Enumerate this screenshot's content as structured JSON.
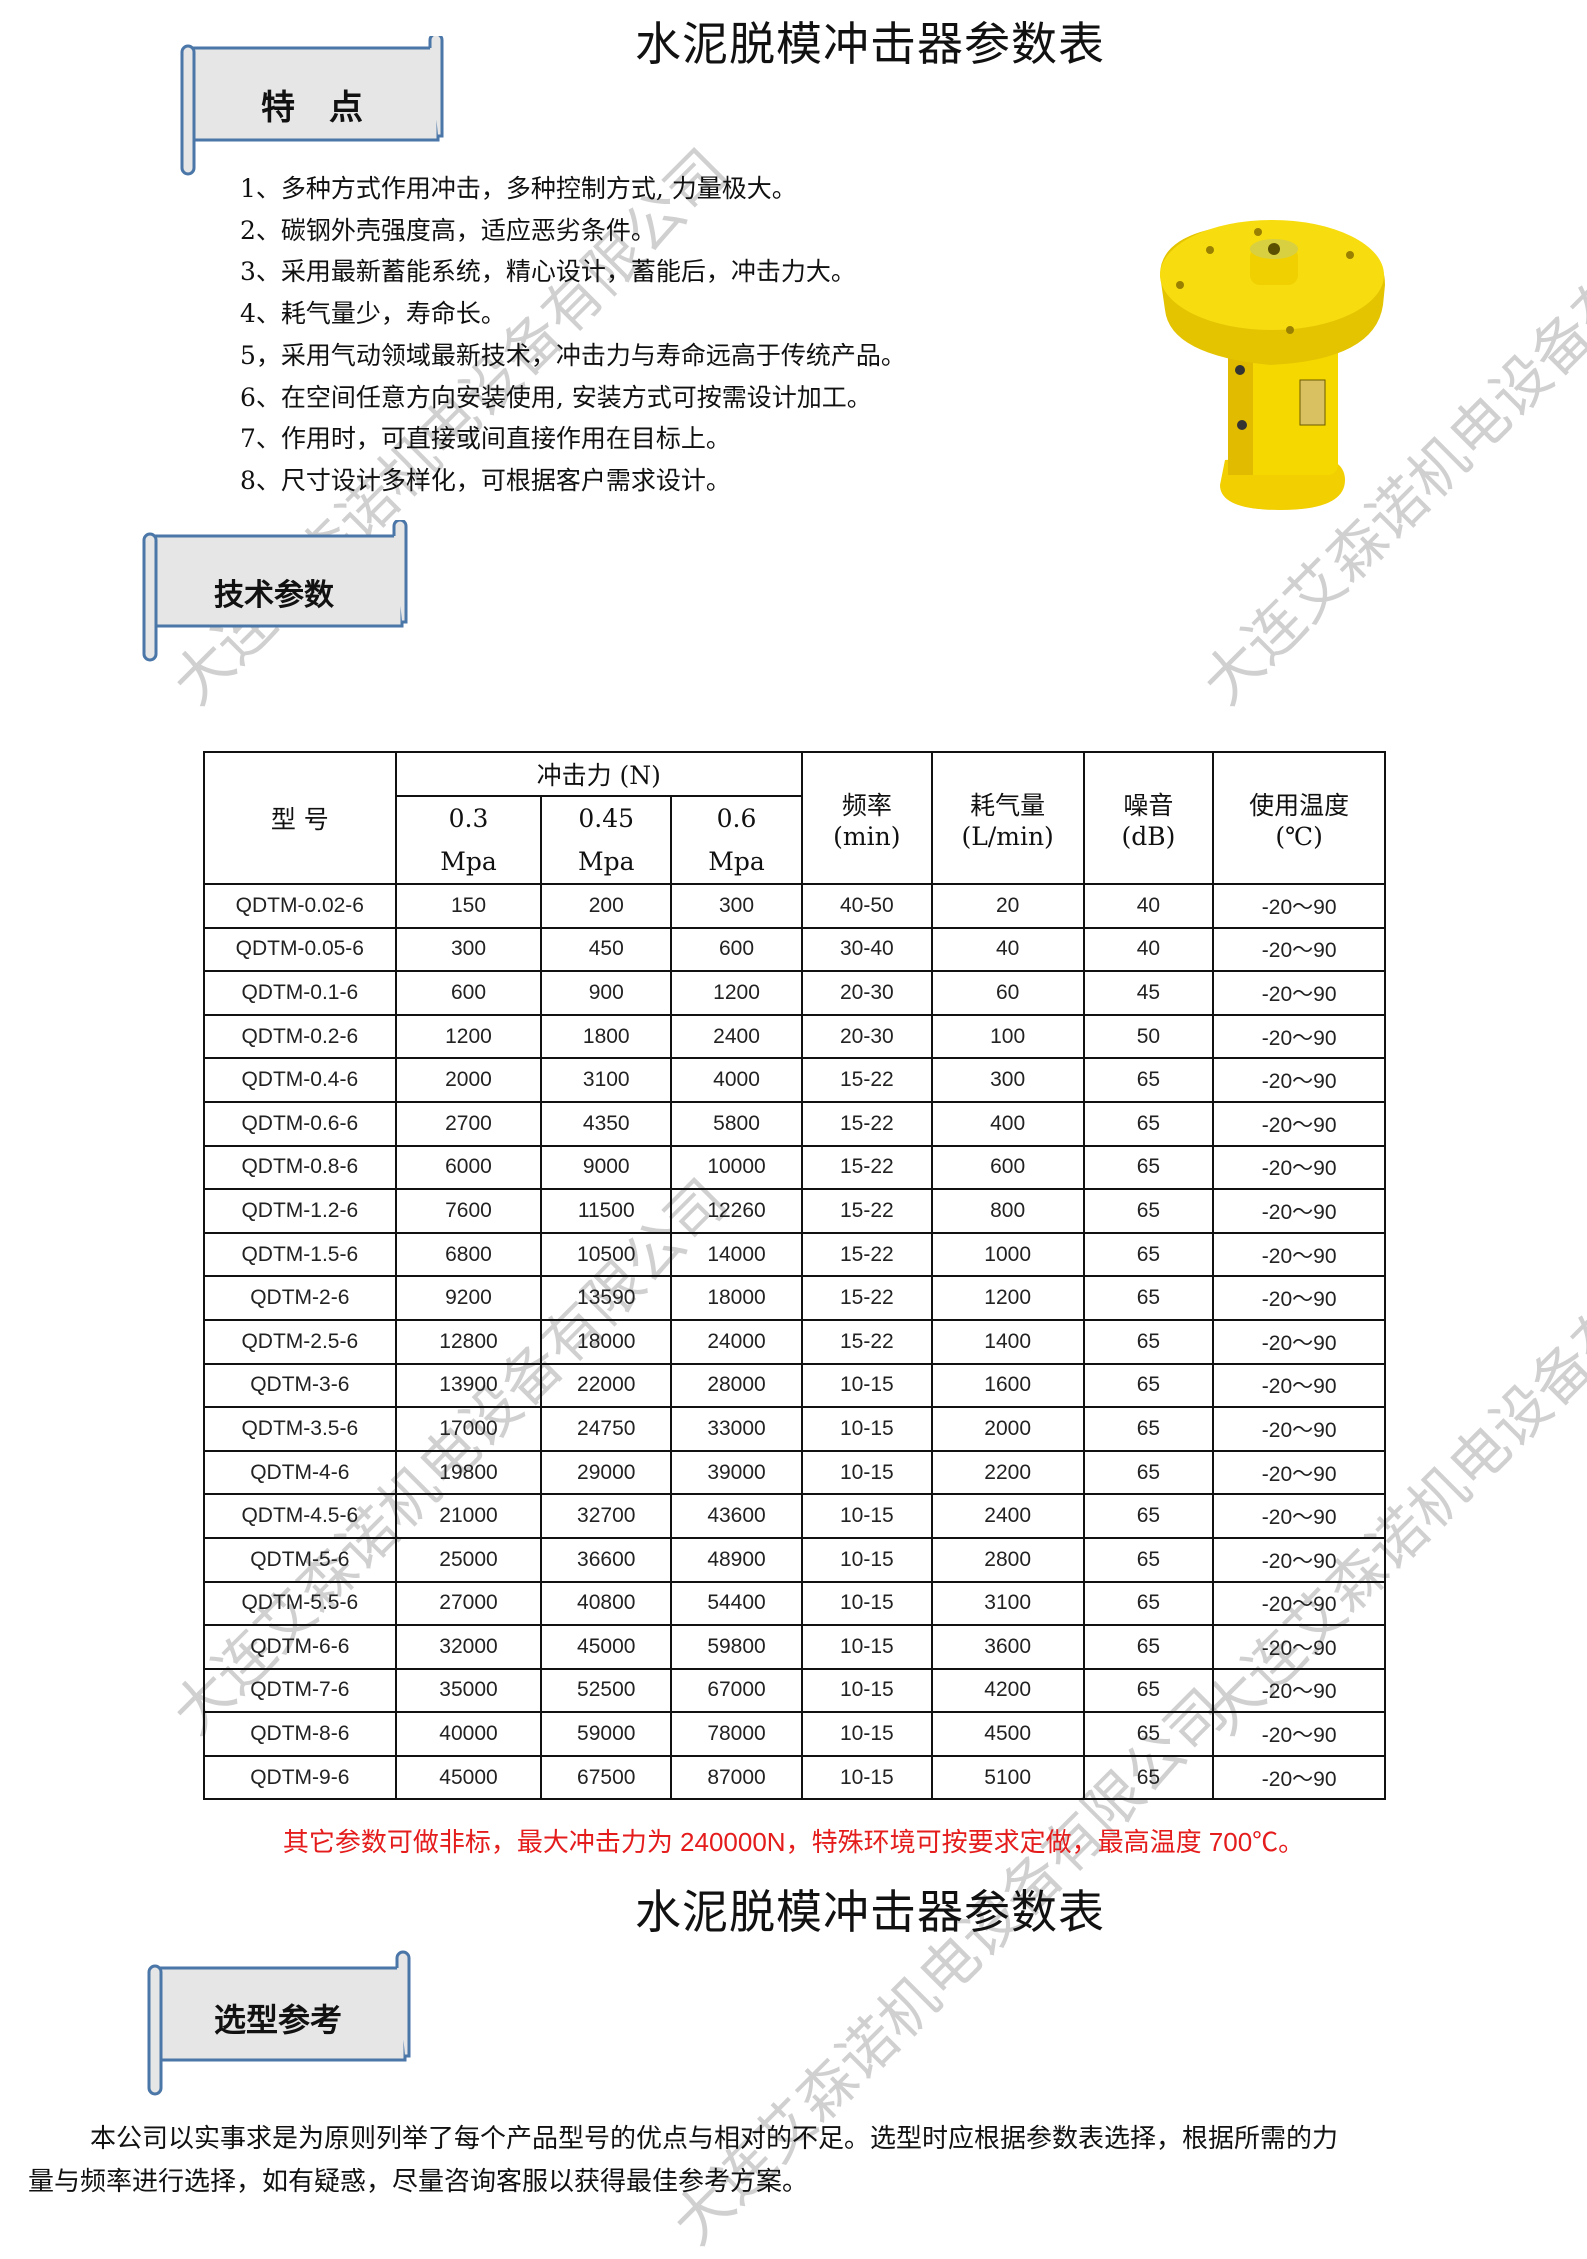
{
  "page_title": "水泥脱模冲击器参数表",
  "features_banner": "特　点",
  "features": [
    "1、多种方式作用冲击，多种控制方式, 力量极大。",
    "2、碳钢外壳强度高，适应恶劣条件。",
    "3、采用最新蓄能系统，精心设计，蓄能后，冲击力大。",
    "4、耗气量少，寿命长。",
    "5，采用气动领域最新技术，冲击力与寿命远高于传统产品。",
    "6、在空间任意方向安装使用, 安装方式可按需设计加工。",
    "7、作用时，可直接或间直接作用在目标上。",
    "8、尺寸设计多样化，可根据客户需求设计。"
  ],
  "product_image": {
    "color": "#f5d800",
    "description_icon": "pneumatic-impactor-image"
  },
  "tech_banner": "技术参数",
  "table": {
    "headers": {
      "model": "型 号",
      "force": "冲击力 (N)",
      "p1": "0.3",
      "p2": "0.45",
      "p3": "0.6",
      "unit": "Mpa",
      "freq": "频率",
      "freq_unit": "(min)",
      "air": "耗气量",
      "air_unit": "(L/min)",
      "noise": "噪音",
      "noise_unit": "(dB)",
      "temp": "使用温度",
      "temp_unit": "(℃)"
    },
    "rows": [
      [
        "QDTM-0.02-6",
        "150",
        "200",
        "300",
        "40-50",
        "20",
        "40",
        "-20～90"
      ],
      [
        "QDTM-0.05-6",
        "300",
        "450",
        "600",
        "30-40",
        "40",
        "40",
        "-20～90"
      ],
      [
        "QDTM-0.1-6",
        "600",
        "900",
        "1200",
        "20-30",
        "60",
        "45",
        "-20～90"
      ],
      [
        "QDTM-0.2-6",
        "1200",
        "1800",
        "2400",
        "20-30",
        "100",
        "50",
        "-20～90"
      ],
      [
        "QDTM-0.4-6",
        "2000",
        "3100",
        "4000",
        "15-22",
        "300",
        "65",
        "-20～90"
      ],
      [
        "QDTM-0.6-6",
        "2700",
        "4350",
        "5800",
        "15-22",
        "400",
        "65",
        "-20～90"
      ],
      [
        "QDTM-0.8-6",
        "6000",
        "9000",
        "10000",
        "15-22",
        "600",
        "65",
        "-20～90"
      ],
      [
        "QDTM-1.2-6",
        "7600",
        "11500",
        "12260",
        "15-22",
        "800",
        "65",
        "-20～90"
      ],
      [
        "QDTM-1.5-6",
        "6800",
        "10500",
        "14000",
        "15-22",
        "1000",
        "65",
        "-20～90"
      ],
      [
        "QDTM-2-6",
        "9200",
        "13590",
        "18000",
        "15-22",
        "1200",
        "65",
        "-20～90"
      ],
      [
        "QDTM-2.5-6",
        "12800",
        "18000",
        "24000",
        "15-22",
        "1400",
        "65",
        "-20～90"
      ],
      [
        "QDTM-3-6",
        "13900",
        "22000",
        "28000",
        "10-15",
        "1600",
        "65",
        "-20～90"
      ],
      [
        "QDTM-3.5-6",
        "17000",
        "24750",
        "33000",
        "10-15",
        "2000",
        "65",
        "-20～90"
      ],
      [
        "QDTM-4-6",
        "19800",
        "29000",
        "39000",
        "10-15",
        "2200",
        "65",
        "-20～90"
      ],
      [
        "QDTM-4.5-6",
        "21000",
        "32700",
        "43600",
        "10-15",
        "2400",
        "65",
        "-20～90"
      ],
      [
        "QDTM-5-6",
        "25000",
        "36600",
        "48900",
        "10-15",
        "2800",
        "65",
        "-20～90"
      ],
      [
        "QDTM-5.5-6",
        "27000",
        "40800",
        "54400",
        "10-15",
        "3100",
        "65",
        "-20～90"
      ],
      [
        "QDTM-6-6",
        "32000",
        "45000",
        "59800",
        "10-15",
        "3600",
        "65",
        "-20～90"
      ],
      [
        "QDTM-7-6",
        "35000",
        "52500",
        "67000",
        "10-15",
        "4200",
        "65",
        "-20～90"
      ],
      [
        "QDTM-8-6",
        "40000",
        "59000",
        "78000",
        "10-15",
        "4500",
        "65",
        "-20～90"
      ],
      [
        "QDTM-9-6",
        "45000",
        "67500",
        "87000",
        "10-15",
        "5100",
        "65",
        "-20～90"
      ]
    ]
  },
  "note": "其它参数可做非标，最大冲击力为 240000N，特殊环境可按要求定做，最高温度 700℃。",
  "note_color": "#e51c1c",
  "second_title": "水泥脱模冲击器参数表",
  "selection_banner": "选型参考",
  "selection_text": "本公司以实事求是为原则列举了每个产品型号的优点与相对的不足。选型时应根据参数表选择，根据所需的力量与频率进行选择，如有疑惑，尽量咨询客服以获得最佳参考方案。",
  "watermark": "大连艾森诺机电设备有限公司",
  "banner_colors": {
    "fill": "#e6e6e6",
    "stroke": "#4a76a8"
  }
}
